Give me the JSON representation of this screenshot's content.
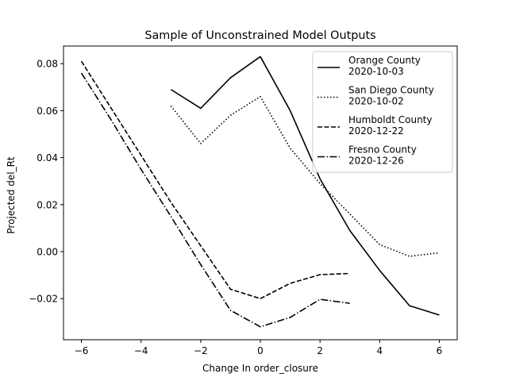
{
  "chart_data": {
    "type": "line",
    "title": "Sample of Unconstrained Model Outputs",
    "xlabel": "Change In order_closure",
    "ylabel": "Projected del_Rt",
    "xlim": [
      -6.6,
      6.6
    ],
    "ylim": [
      -0.0375,
      0.0875
    ],
    "xticks": [
      -6,
      -4,
      -2,
      0,
      2,
      4,
      6
    ],
    "xtick_labels": [
      "−6",
      "−4",
      "−2",
      "0",
      "2",
      "4",
      "6"
    ],
    "yticks": [
      -0.02,
      0.0,
      0.02,
      0.04,
      0.06,
      0.08
    ],
    "ytick_labels": [
      "−0.02",
      "0.00",
      "0.02",
      "0.04",
      "0.06",
      "0.08"
    ],
    "grid": false,
    "legend_position": "top-right",
    "series": [
      {
        "name": "Orange County\n2020-10-03",
        "linestyle": "solid",
        "color": "#000000",
        "x": [
          -3,
          -2,
          -1,
          0,
          1,
          2,
          3,
          4,
          5,
          6
        ],
        "y": [
          0.069,
          0.061,
          0.074,
          0.083,
          0.06,
          0.031,
          0.009,
          -0.008,
          -0.023,
          -0.027
        ]
      },
      {
        "name": "San Diego County\n2020-10-02",
        "linestyle": "dotted",
        "color": "#000000",
        "x": [
          -3,
          -2,
          -1,
          0,
          1,
          2,
          3,
          4,
          5,
          6
        ],
        "y": [
          0.062,
          0.046,
          0.058,
          0.066,
          0.044,
          0.029,
          0.016,
          0.003,
          -0.002,
          -0.0005
        ]
      },
      {
        "name": "Humboldt County\n2020-12-22",
        "linestyle": "dashed",
        "color": "#000000",
        "x": [
          -6,
          -5,
          -4,
          -3,
          -2,
          -1,
          0,
          1,
          2,
          3
        ],
        "y": [
          0.081,
          0.061,
          0.041,
          0.021,
          0.0025,
          -0.016,
          -0.02,
          -0.0135,
          -0.0098,
          -0.0093
        ]
      },
      {
        "name": "Fresno County\n2020-12-26",
        "linestyle": "dashdot",
        "color": "#000000",
        "x": [
          -6,
          -5,
          -4,
          -3,
          -2,
          -1,
          0,
          1,
          2,
          3
        ],
        "y": [
          0.076,
          0.056,
          0.035,
          0.015,
          -0.0055,
          -0.025,
          -0.032,
          -0.028,
          -0.0203,
          -0.022
        ]
      }
    ]
  }
}
